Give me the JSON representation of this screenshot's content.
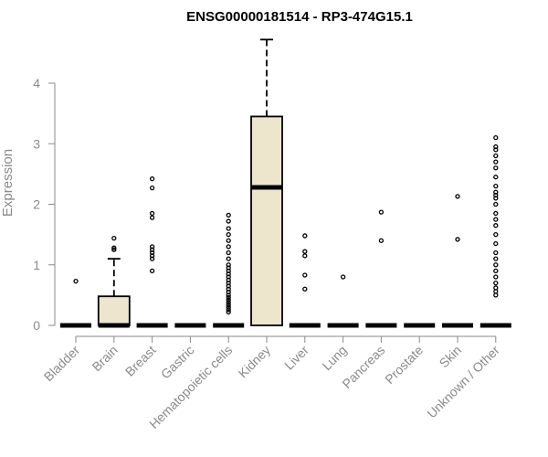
{
  "chart_data": {
    "type": "boxplot",
    "title": "ENSG00000181514 - RP3-474G15.1",
    "ylabel": "Expression",
    "ylim": [
      0,
      4.8
    ],
    "yticks": [
      0,
      1,
      2,
      3,
      4
    ],
    "grid": false,
    "colors": {
      "box_fill": "#ede6cd",
      "outline": "#000000",
      "axis": "#8a8a8a"
    },
    "categories": [
      "Bladder",
      "Brain",
      "Breast",
      "Gastric",
      "Hematopoietic cells",
      "Kidney",
      "Liver",
      "Lung",
      "Pancreas",
      "Prostate",
      "Skin",
      "Unknown / Other"
    ],
    "boxes": [
      {
        "q1": 0,
        "median": 0,
        "q3": 0,
        "whisker_low": 0,
        "whisker_high": 0,
        "outliers": [
          0.73
        ]
      },
      {
        "q1": 0,
        "median": 0,
        "q3": 0.48,
        "whisker_low": 0,
        "whisker_high": 1.1,
        "outliers": [
          1.25,
          1.28,
          1.44
        ]
      },
      {
        "q1": 0,
        "median": 0,
        "q3": 0,
        "whisker_low": 0,
        "whisker_high": 0,
        "outliers": [
          0.9,
          1.1,
          1.15,
          1.2,
          1.25,
          1.3,
          1.78,
          1.85,
          2.27,
          2.42
        ]
      },
      {
        "q1": 0,
        "median": 0,
        "q3": 0,
        "whisker_low": 0,
        "whisker_high": 0,
        "outliers": []
      },
      {
        "q1": 0,
        "median": 0,
        "q3": 0,
        "whisker_low": 0,
        "whisker_high": 0,
        "outliers": [
          0.22,
          0.26,
          0.3,
          0.34,
          0.38,
          0.42,
          0.46,
          0.5,
          0.55,
          0.6,
          0.65,
          0.7,
          0.75,
          0.8,
          0.85,
          0.9,
          0.95,
          1.0,
          1.1,
          1.2,
          1.3,
          1.4,
          1.5,
          1.6,
          1.72,
          1.82
        ]
      },
      {
        "q1": 0,
        "median": 2.28,
        "q3": 3.45,
        "whisker_low": 0,
        "whisker_high": 4.72,
        "outliers": []
      },
      {
        "q1": 0,
        "median": 0,
        "q3": 0,
        "whisker_low": 0,
        "whisker_high": 0,
        "outliers": [
          0.6,
          0.83,
          1.15,
          1.22,
          1.48
        ]
      },
      {
        "q1": 0,
        "median": 0,
        "q3": 0,
        "whisker_low": 0,
        "whisker_high": 0,
        "outliers": [
          0.8
        ]
      },
      {
        "q1": 0,
        "median": 0,
        "q3": 0,
        "whisker_low": 0,
        "whisker_high": 0,
        "outliers": [
          1.4,
          1.87
        ]
      },
      {
        "q1": 0,
        "median": 0,
        "q3": 0,
        "whisker_low": 0,
        "whisker_high": 0,
        "outliers": []
      },
      {
        "q1": 0,
        "median": 0,
        "q3": 0,
        "whisker_low": 0,
        "whisker_high": 0,
        "outliers": [
          1.42,
          2.13
        ]
      },
      {
        "q1": 0,
        "median": 0,
        "q3": 0,
        "whisker_low": 0,
        "whisker_high": 0,
        "outliers": [
          0.5,
          0.56,
          0.62,
          0.7,
          0.8,
          0.9,
          1.0,
          1.1,
          1.2,
          1.35,
          1.5,
          1.65,
          1.75,
          1.85,
          2.0,
          2.1,
          2.15,
          2.2,
          2.3,
          2.45,
          2.6,
          2.7,
          2.8,
          2.9,
          2.95,
          3.1
        ]
      }
    ]
  }
}
